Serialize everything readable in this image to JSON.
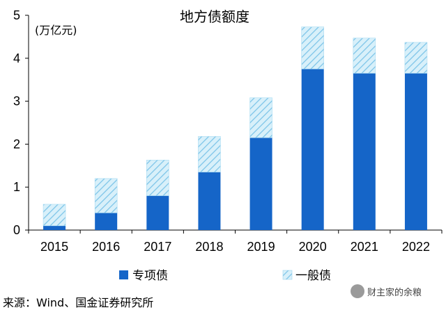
{
  "chart_data": {
    "type": "bar",
    "stacked": true,
    "title": "地方债额度",
    "unit_label": "(万亿元)",
    "categories": [
      "2015",
      "2016",
      "2017",
      "2018",
      "2019",
      "2020",
      "2021",
      "2022"
    ],
    "series": [
      {
        "name": "专项债",
        "values": [
          0.1,
          0.4,
          0.8,
          1.35,
          2.15,
          3.75,
          3.65,
          3.65
        ],
        "color": "#1565C8",
        "pattern": "solid"
      },
      {
        "name": "一般债",
        "values": [
          0.5,
          0.8,
          0.83,
          0.83,
          0.93,
          0.98,
          0.82,
          0.72
        ],
        "color": "#BFE3F5",
        "pattern": "hatched"
      }
    ],
    "ylim": [
      0,
      5
    ],
    "yticks": [
      "0",
      "1",
      "2",
      "3",
      "4",
      "5"
    ],
    "grid": false,
    "legend_position": "bottom"
  },
  "footer": {
    "source": "来源：Wind、国金证券研究所"
  },
  "watermark": {
    "text": "财主家的余粮",
    "icon": "wechat-icon"
  }
}
